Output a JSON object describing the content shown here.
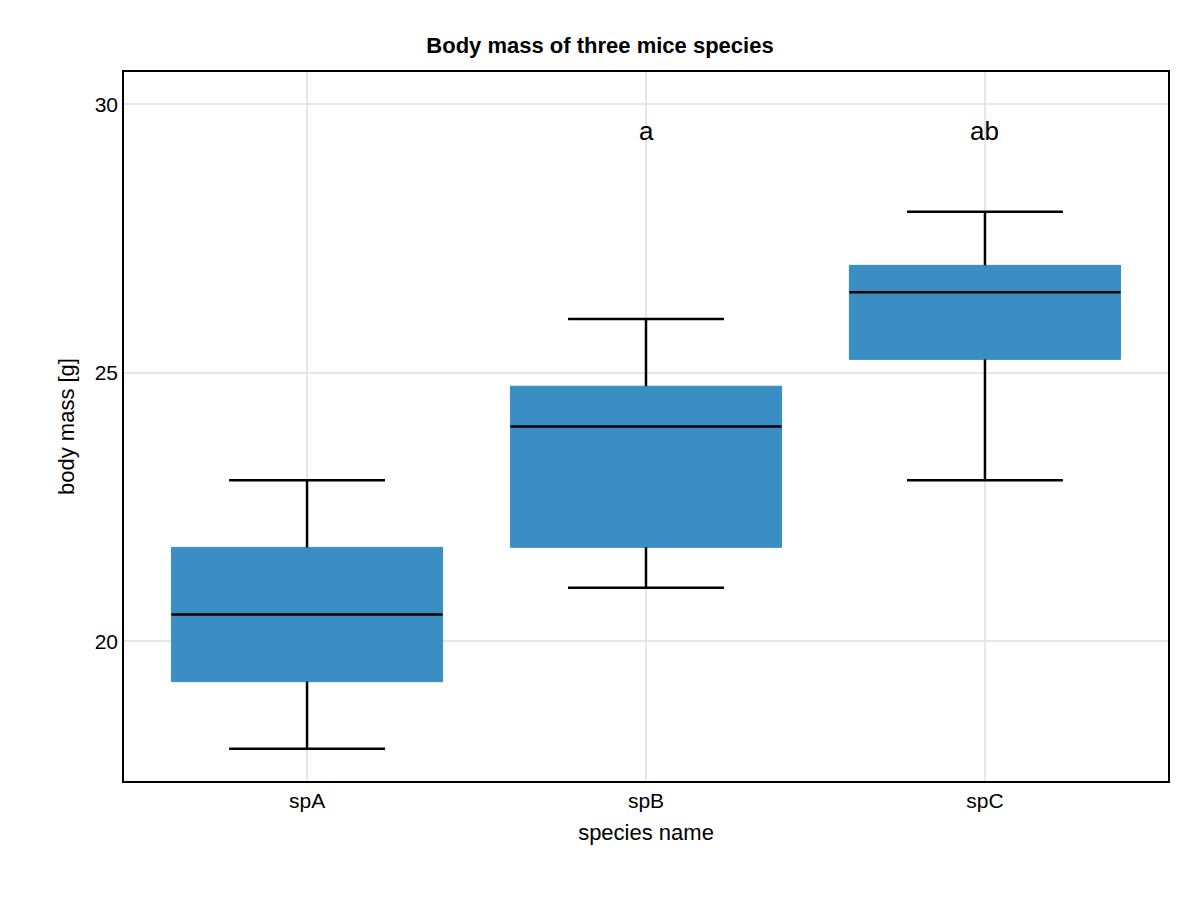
{
  "chart_data": {
    "type": "box",
    "title": "Body mass of three mice species",
    "x_label": "species name",
    "y_label": "body mass [g]",
    "categories": [
      "spA",
      "spB",
      "spC"
    ],
    "lower_whisker": [
      18,
      21,
      23
    ],
    "q1": [
      19.25,
      21.75,
      25.25
    ],
    "median": [
      20.5,
      24,
      26.5
    ],
    "q3": [
      21.75,
      24.75,
      27
    ],
    "upper_whisker": [
      23,
      26,
      28
    ],
    "color": "#3a8ec3",
    "ylim": [
      17.4,
      30.6
    ],
    "yticks": [
      20,
      25,
      30
    ],
    "grid": true,
    "annotations": [
      {
        "category": "spB",
        "y": 29.5,
        "text": "a"
      },
      {
        "category": "spC",
        "y": 29.5,
        "text": "ab"
      }
    ]
  }
}
